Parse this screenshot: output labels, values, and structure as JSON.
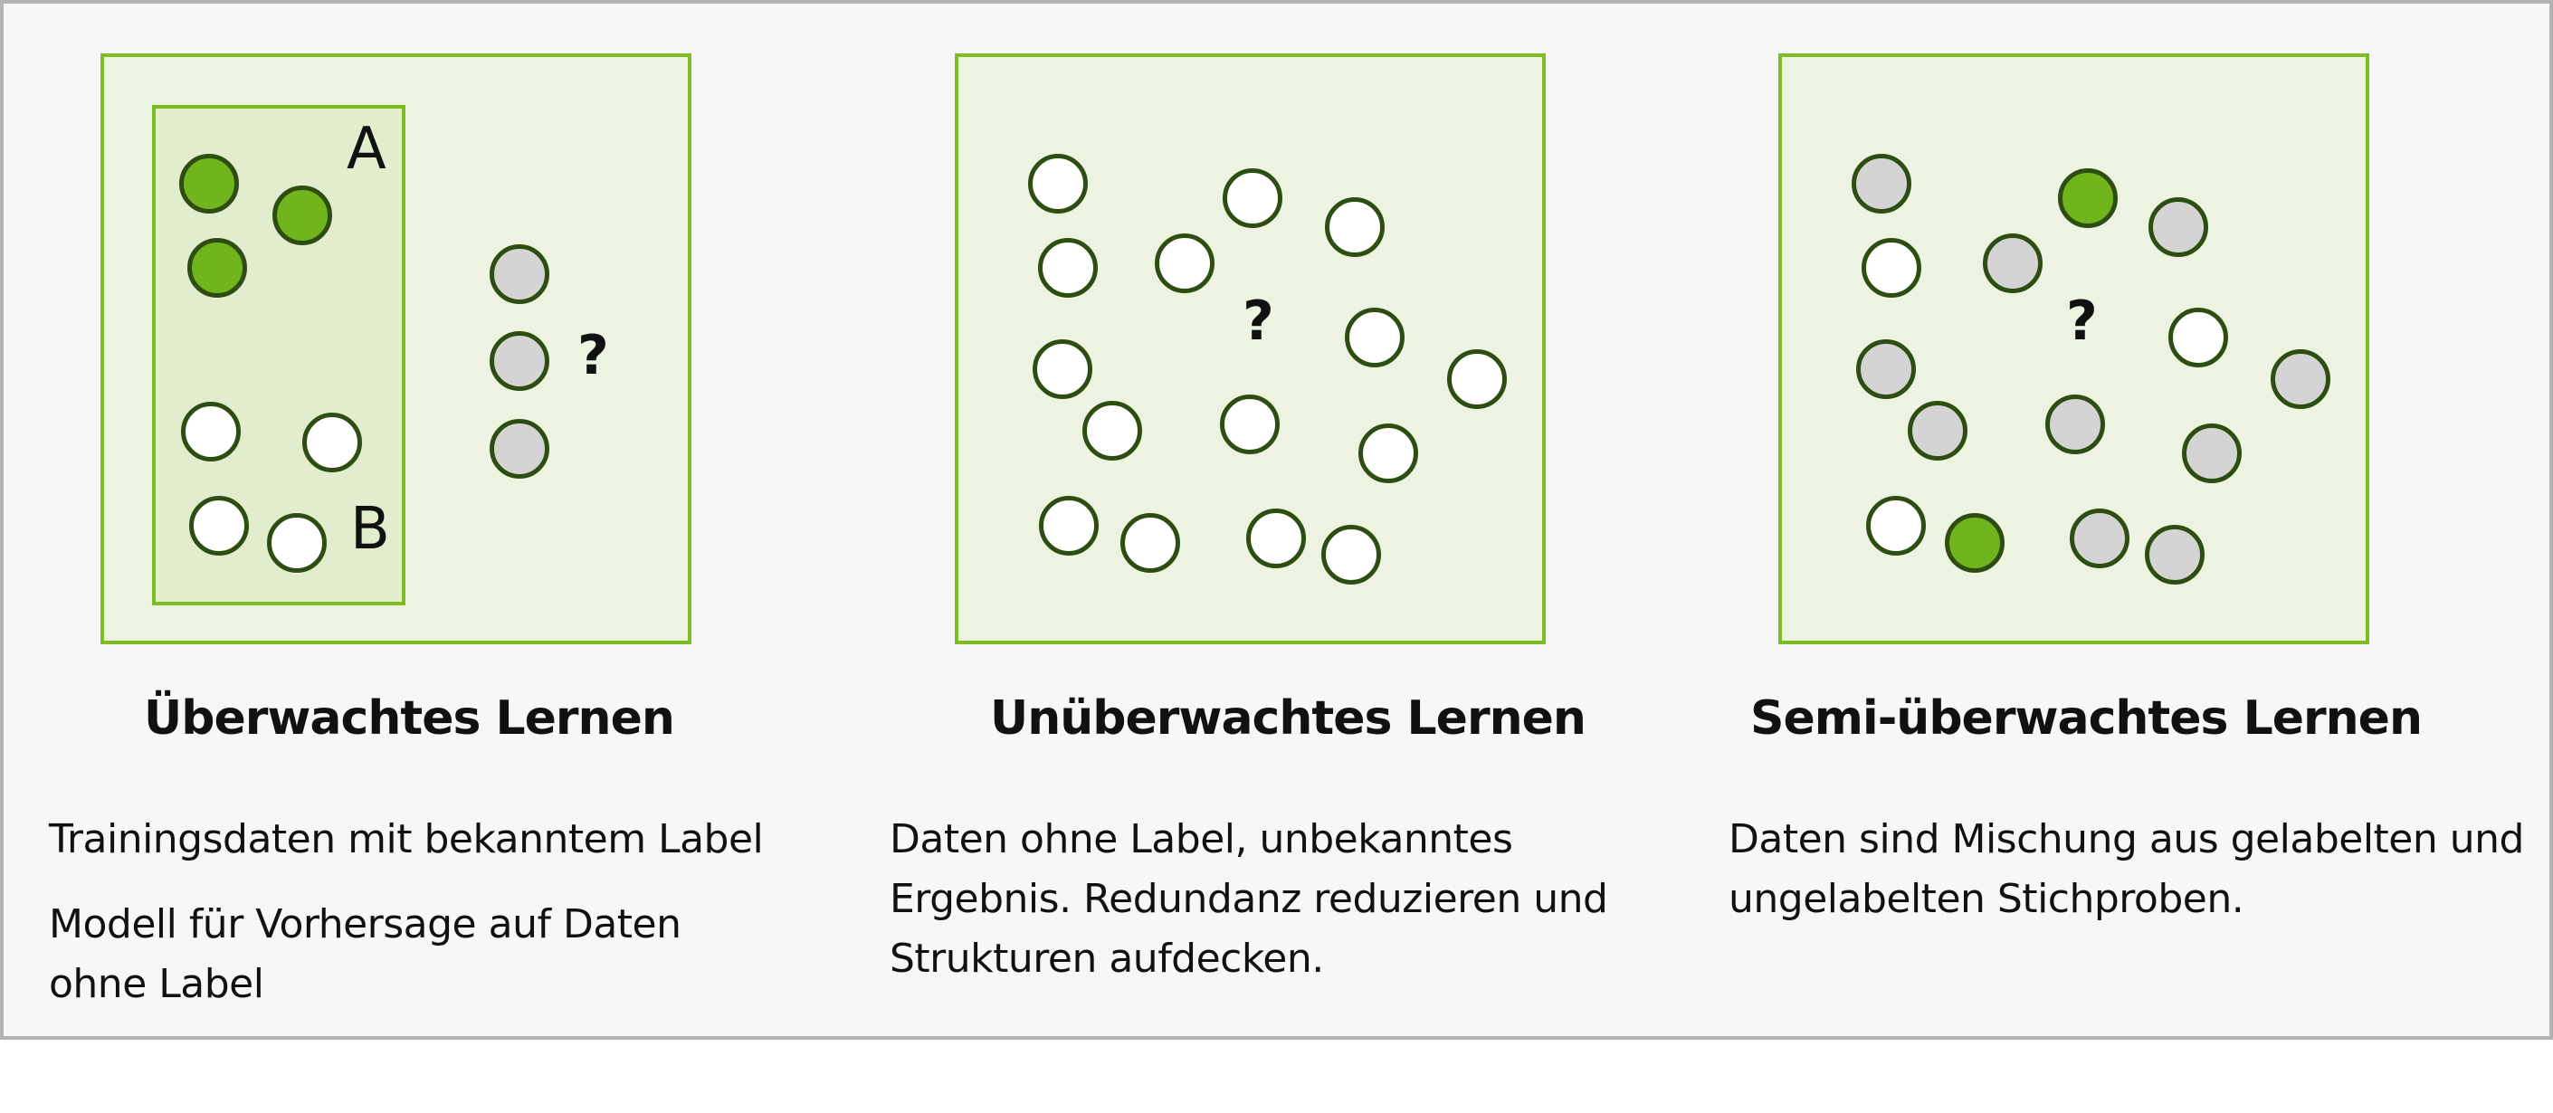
{
  "panels": [
    {
      "title": "Überwachtes Lernen",
      "group_a_label": "A",
      "group_b_label": "B",
      "question_mark": "?",
      "descriptions": [
        "Trainingsdaten mit bekanntem Label",
        "Modell für Vorhersage auf Daten ohne Label"
      ]
    },
    {
      "title": "Unüberwachtes Lernen",
      "question_mark": "?",
      "descriptions": [
        "Daten ohne Label, unbekanntes Ergebnis. Redundanz reduzieren und Strukturen aufdecken."
      ]
    },
    {
      "title": "Semi-überwachtes Lernen",
      "question_mark": "?",
      "descriptions": [
        "Daten sind Mischung aus gelabelten und ungelabelten Stichproben."
      ]
    }
  ],
  "colors": {
    "panel_fill": "#ecf3e1",
    "panel_border": "#7ebd22",
    "label_a": "#6fb51b",
    "label_b": "#ffffff",
    "unlabeled": "#d4d4d4",
    "dot_outline": "#2e4d12"
  }
}
